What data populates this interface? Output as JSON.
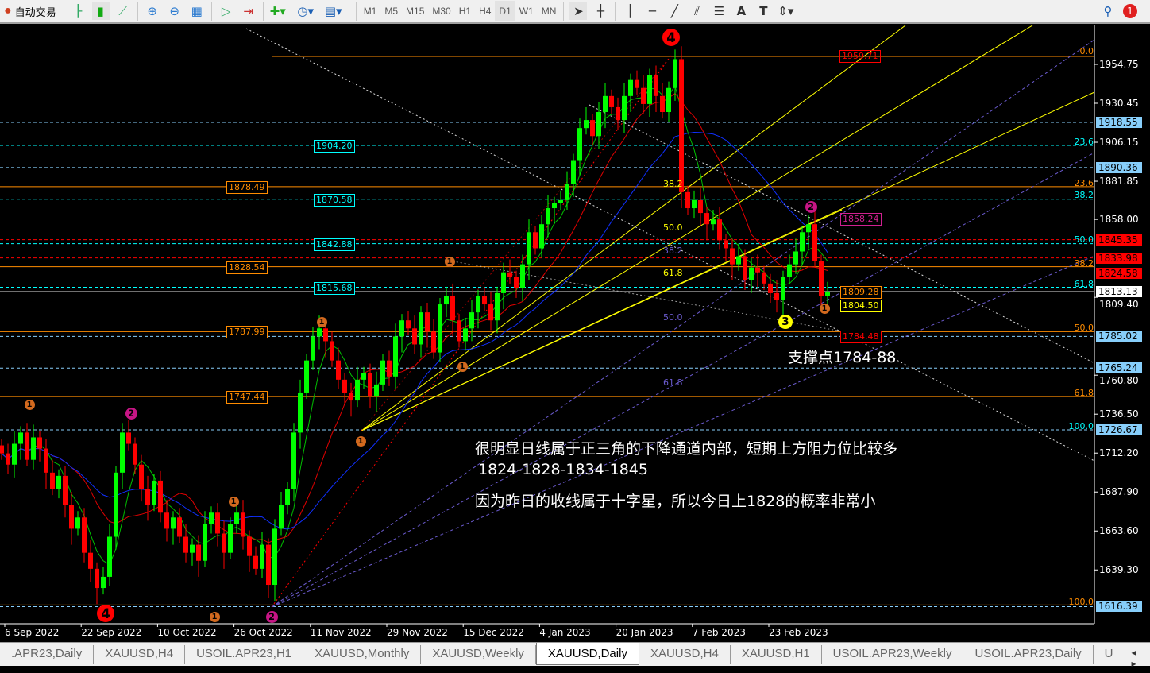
{
  "toolbar": {
    "auto_trading": "自动交易",
    "timeframes": [
      "M1",
      "M5",
      "M15",
      "M30",
      "H1",
      "H4",
      "D1",
      "W1",
      "MN"
    ],
    "active_timeframe": "D1",
    "notification_count": "1",
    "icons": [
      "bar-chart-icon",
      "candlestick-icon",
      "line-chart-icon",
      "zoom-in-icon",
      "zoom-out-icon",
      "tile-windows-icon",
      "autoscroll-icon",
      "chart-shift-icon",
      "new-order-icon",
      "clock-icon",
      "indicators-icon",
      "cursor-icon",
      "crosshair-icon",
      "vertical-line-icon",
      "horizontal-line-icon",
      "trendline-icon",
      "equidistant-channel-icon",
      "fibonacci-icon",
      "text-icon",
      "text-label-icon",
      "arrows-icon",
      "search-icon",
      "notification-icon"
    ]
  },
  "axis": {
    "ticks": [
      "1954.75",
      "1930.45",
      "1906.15",
      "1881.85",
      "1858.00",
      "1809.40",
      "1760.80",
      "1736.50",
      "1712.20",
      "1687.90",
      "1663.60",
      "1639.30"
    ],
    "tick_values": [
      1954.75,
      1930.45,
      1906.15,
      1881.85,
      1858.0,
      1809.4,
      1760.8,
      1736.5,
      1712.2,
      1687.9,
      1663.6,
      1639.3
    ],
    "labels": [
      {
        "text": "1918.55",
        "price": 1918.55,
        "bg": "#87cefa"
      },
      {
        "text": "1890.36",
        "price": 1890.36,
        "bg": "#87cefa"
      },
      {
        "text": "1845.35",
        "price": 1845.35,
        "bg": "#ff0000"
      },
      {
        "text": "1833.98",
        "price": 1833.98,
        "bg": "#ff0000"
      },
      {
        "text": "1824.58",
        "price": 1824.58,
        "bg": "#ff0000"
      },
      {
        "text": "1813.13",
        "price": 1813.13,
        "bg": "#ffffff"
      },
      {
        "text": "1785.02",
        "price": 1785.02,
        "bg": "#87cefa"
      },
      {
        "text": "1765.24",
        "price": 1765.24,
        "bg": "#87cefa"
      },
      {
        "text": "1726.67",
        "price": 1726.67,
        "bg": "#87cefa"
      },
      {
        "text": "1616.39",
        "price": 1616.39,
        "bg": "#87cefa"
      }
    ]
  },
  "dates": [
    "6 Sep 2022",
    "22 Sep 2022",
    "10 Oct 2022",
    "26 Oct 2022",
    "11 Nov 2022",
    "29 Nov 2022",
    "15 Dec 2022",
    "4 Jan 2023",
    "20 Jan 2023",
    "7 Feb 2023",
    "23 Feb 2023"
  ],
  "levels": [
    {
      "price": 1959.71,
      "color": "#ff8c00",
      "style": "solid",
      "group": "top"
    },
    {
      "price": 1918.55,
      "color": "#87cefa",
      "style": "dash"
    },
    {
      "price": 1904.2,
      "color": "#00ffff",
      "style": "dash",
      "label": "1904.20",
      "group": "cyan"
    },
    {
      "price": 1890.36,
      "color": "#87cefa",
      "style": "dash"
    },
    {
      "price": 1878.49,
      "color": "#ff8c00",
      "style": "solid",
      "label": "1878.49",
      "group": "orange"
    },
    {
      "price": 1870.58,
      "color": "#00ffff",
      "style": "dash",
      "label": "1870.58",
      "group": "cyan"
    },
    {
      "price": 1845.35,
      "color": "#ff0000",
      "style": "dash"
    },
    {
      "price": 1842.88,
      "color": "#00ffff",
      "style": "dash",
      "label": "1842.88",
      "group": "cyan"
    },
    {
      "price": 1833.98,
      "color": "#ff0000",
      "style": "dash"
    },
    {
      "price": 1828.54,
      "color": "#ff8c00",
      "style": "solid",
      "label": "1828.54",
      "group": "orange"
    },
    {
      "price": 1824.58,
      "color": "#ff0000",
      "style": "dash"
    },
    {
      "price": 1815.68,
      "color": "#00ffff",
      "style": "dash",
      "label": "1815.68",
      "group": "cyan"
    },
    {
      "price": 1813.13,
      "color": "#808080",
      "style": "solid"
    },
    {
      "price": 1787.99,
      "color": "#ff8c00",
      "style": "solid",
      "label": "1787.99",
      "group": "orange"
    },
    {
      "price": 1785.02,
      "color": "#87cefa",
      "style": "dash"
    },
    {
      "price": 1765.24,
      "color": "#87cefa",
      "style": "dash"
    },
    {
      "price": 1747.44,
      "color": "#ff8c00",
      "style": "solid",
      "label": "1747.44",
      "group": "orange"
    },
    {
      "price": 1726.67,
      "color": "#87cefa",
      "style": "dash"
    },
    {
      "price": 1617.4,
      "color": "#ff8c00",
      "style": "solid"
    },
    {
      "price": 1616.39,
      "color": "#87cefa",
      "style": "dash"
    }
  ],
  "fib_labels_right": [
    {
      "text": "0.0",
      "price": 1962.5,
      "color": "#ff8c00"
    },
    {
      "text": "23.6",
      "price": 1906.2,
      "color": "#00ffff"
    },
    {
      "text": "23.6",
      "price": 1880.5,
      "color": "#ff8c00"
    },
    {
      "text": "38.2",
      "price": 1873.0,
      "color": "#00ffff"
    },
    {
      "text": "50.0",
      "price": 1845.4,
      "color": "#00ffff"
    },
    {
      "text": "38.2",
      "price": 1830.5,
      "color": "#ff8c00"
    },
    {
      "text": "61.8",
      "price": 1817.5,
      "color": "#00ffff"
    },
    {
      "text": "50.0",
      "price": 1790.0,
      "color": "#ff8c00"
    },
    {
      "text": "61.8",
      "price": 1749.5,
      "color": "#ff8c00"
    },
    {
      "text": "100.0",
      "price": 1728.5,
      "color": "#00ffff"
    },
    {
      "text": "100.0",
      "price": 1619.0,
      "color": "#ff8c00"
    }
  ],
  "fib_labels_mid": [
    {
      "text": "38.2",
      "price": 1880.0,
      "color": "#ffff00"
    },
    {
      "text": "50.0",
      "price": 1852.5,
      "color": "#ffff00"
    },
    {
      "text": "38.2",
      "price": 1838.0,
      "color": "#6a5acd"
    },
    {
      "text": "61.8",
      "price": 1824.5,
      "color": "#ffff00"
    },
    {
      "text": "50.0",
      "price": 1796.5,
      "color": "#6a5acd"
    },
    {
      "text": "61.8",
      "price": 1756.0,
      "color": "#6a5acd"
    }
  ],
  "price_tags": [
    {
      "text": "1959.71",
      "color": "#ff0000"
    },
    {
      "text": "1858.24",
      "color": "#d02090"
    },
    {
      "text": "1809.28",
      "color": "#ff8c00"
    },
    {
      "text": "1804.50",
      "color": "#ffff00"
    },
    {
      "text": "1784.48",
      "color": "#ff0000"
    }
  ],
  "markers": [
    {
      "text": "4",
      "color": "#ff0000",
      "size": "big"
    },
    {
      "text": "4",
      "color": "#ff0000",
      "size": "big"
    },
    {
      "text": "1",
      "color": "#d2691e"
    },
    {
      "text": "1",
      "color": "#d2691e"
    },
    {
      "text": "1",
      "color": "#d2691e"
    },
    {
      "text": "1",
      "color": "#d2691e"
    },
    {
      "text": "1",
      "color": "#d2691e"
    },
    {
      "text": "1",
      "color": "#d2691e"
    },
    {
      "text": "1",
      "color": "#d2691e"
    },
    {
      "text": "1",
      "color": "#d2691e"
    },
    {
      "text": "2",
      "color": "#c71585"
    },
    {
      "text": "2",
      "color": "#c71585"
    },
    {
      "text": "2",
      "color": "#c71585"
    },
    {
      "text": "3",
      "color": "#ffff00"
    }
  ],
  "notes": {
    "support": "支撑点1784-88",
    "line1": "很明显日线属于正三角的下降通道内部，短期上方阻力位比较多",
    "line2": "1824-1828-1834-1845",
    "line3": "因为昨日的收线属于十字星，所以今日上1828的概率非常小"
  },
  "candles": {
    "closes": [
      1712,
      1705,
      1718,
      1725,
      1708,
      1722,
      1715,
      1700,
      1690,
      1698,
      1680,
      1665,
      1672,
      1650,
      1640,
      1628,
      1635,
      1660,
      1700,
      1725,
      1718,
      1705,
      1690,
      1680,
      1695,
      1675,
      1665,
      1672,
      1660,
      1650,
      1655,
      1645,
      1668,
      1675,
      1662,
      1650,
      1668,
      1675,
      1660,
      1648,
      1640,
      1655,
      1630,
      1665,
      1680,
      1690,
      1725,
      1750,
      1770,
      1785,
      1790,
      1782,
      1770,
      1758,
      1750,
      1745,
      1758,
      1762,
      1748,
      1755,
      1770,
      1760,
      1785,
      1795,
      1790,
      1780,
      1800,
      1788,
      1775,
      1805,
      1810,
      1795,
      1782,
      1790,
      1800,
      1810,
      1805,
      1795,
      1812,
      1825,
      1822,
      1815,
      1830,
      1850,
      1840,
      1855,
      1865,
      1868,
      1870,
      1880,
      1895,
      1915,
      1920,
      1910,
      1925,
      1935,
      1928,
      1920,
      1935,
      1945,
      1940,
      1930,
      1948,
      1935,
      1925,
      1940,
      1958,
      1875,
      1865,
      1870,
      1862,
      1855,
      1858,
      1845,
      1840,
      1830,
      1835,
      1820,
      1828,
      1825,
      1818,
      1812,
      1808,
      1822,
      1830,
      1838,
      1850,
      1855,
      1832,
      1810,
      1813
    ],
    "up_color": "#00ff00",
    "down_color": "#ff0000"
  },
  "tabs": [
    ".APR23,Daily",
    "XAUUSD,H4",
    "USOIL.APR23,H1",
    "XAUUSD,Monthly",
    "XAUUSD,Weekly",
    "XAUUSD,Daily",
    "XAUUSD,H4",
    "XAUUSD,H1",
    "USOIL.APR23,Weekly",
    "USOIL.APR23,Daily",
    "U"
  ],
  "active_tab": 5
}
